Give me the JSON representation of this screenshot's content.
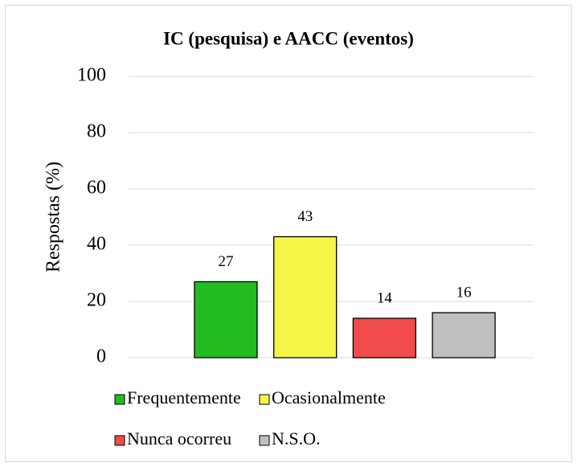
{
  "chart_data": {
    "type": "bar",
    "title": "IC (pesquisa) e AACC (eventos)",
    "y_label": "Respostas (%)",
    "categories": [
      "Frequentemente",
      "Ocasionalmente",
      "Nunca ocorreu",
      "N.S.O."
    ],
    "values": [
      27,
      43,
      14,
      16
    ],
    "colors": [
      "#22bb22",
      "#f5f548",
      "#f24b4b",
      "#bfbfbf"
    ],
    "ylim": [
      0,
      100
    ],
    "yticks": [
      0,
      20,
      40,
      60,
      80,
      100
    ],
    "grid": true
  }
}
